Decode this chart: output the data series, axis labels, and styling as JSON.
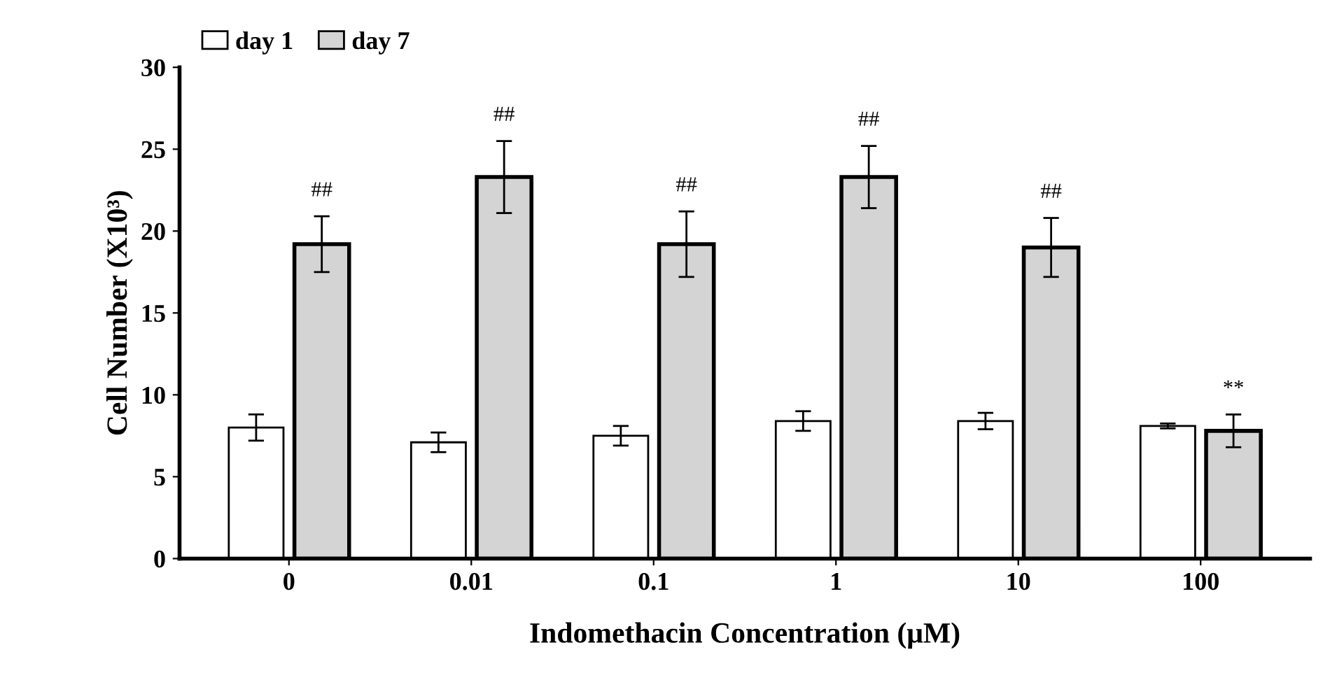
{
  "chart_data": {
    "type": "bar",
    "xlabel": "Indomethacin Concentration (μM)",
    "ylabel": "Cell Number (X10³)",
    "categories": [
      "0",
      "0.01",
      "0.1",
      "1",
      "10",
      "100"
    ],
    "series": [
      {
        "name": "day 1",
        "color": "#ffffff",
        "values": [
          8.0,
          7.1,
          7.5,
          8.4,
          8.4,
          8.1
        ],
        "errors": [
          0.8,
          0.6,
          0.6,
          0.6,
          0.5,
          0.15
        ]
      },
      {
        "name": "day 7",
        "color": "#d4d4d4",
        "values": [
          19.2,
          23.3,
          19.2,
          23.3,
          19.0,
          7.8
        ],
        "errors": [
          1.7,
          2.2,
          2.0,
          1.9,
          1.8,
          1.0
        ]
      }
    ],
    "annotations": [
      "##",
      "##",
      "##",
      "##",
      "##",
      "**"
    ],
    "ylim": [
      0,
      30
    ],
    "yticks": [
      0,
      5,
      10,
      15,
      20,
      25,
      30
    ],
    "grid": false,
    "legend": "top left"
  }
}
